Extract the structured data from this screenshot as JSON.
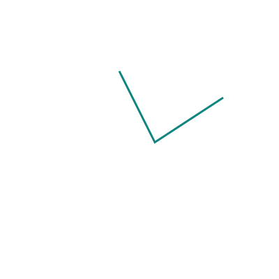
{
  "diagram": {
    "shape": "two connected line segments forming an open angle",
    "stroke_color": "#0e8580",
    "background_color": "#ffffff"
  }
}
